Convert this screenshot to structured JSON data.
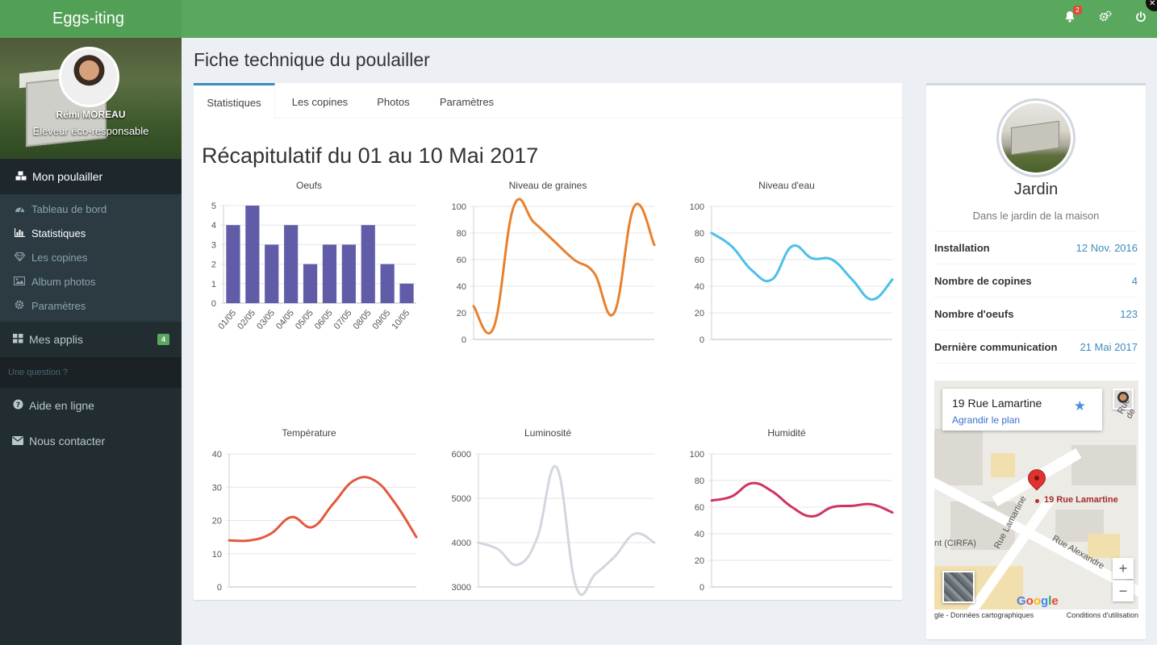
{
  "app": {
    "title": "Eggs-iting"
  },
  "topbar": {
    "notifications_count": "2",
    "icons": [
      "bell-icon",
      "gears-icon",
      "power-icon"
    ]
  },
  "user": {
    "name": "Rémi MOREAU",
    "role": "Eleveur éco-responsable"
  },
  "sidebar": {
    "section_title": "Mon poulailler",
    "items": [
      {
        "label": "Tableau de bord",
        "icon": "dashboard-icon",
        "active": false
      },
      {
        "label": "Statistiques",
        "icon": "bar-chart-icon",
        "active": true
      },
      {
        "label": "Les copines",
        "icon": "diamond-icon",
        "active": false
      },
      {
        "label": "Album photos",
        "icon": "image-icon",
        "active": false
      },
      {
        "label": "Paramètres",
        "icon": "gear-icon",
        "active": false
      }
    ],
    "apps": {
      "label": "Mes applis",
      "badge": "4"
    },
    "question_header": "Une question ?",
    "help": "Aide en ligne",
    "contact": "Nous contacter"
  },
  "page": {
    "title": "Fiche technique du poulailler",
    "tabs": [
      "Statistiques",
      "Les copines",
      "Photos",
      "Paramètres"
    ],
    "active_tab": "Statistiques",
    "recap_title": "Récapitulatif du 01 au 10 Mai 2017"
  },
  "chart_data": [
    {
      "type": "bar",
      "title": "Oeufs",
      "categories": [
        "01/05",
        "02/05",
        "03/05",
        "04/05",
        "05/05",
        "06/05",
        "07/05",
        "08/05",
        "09/05",
        "10/05"
      ],
      "values": [
        4,
        5,
        3,
        4,
        2,
        3,
        3,
        4,
        2,
        1
      ],
      "ylim": [
        0,
        5
      ],
      "yticks": [
        0,
        1,
        2,
        3,
        4,
        5
      ],
      "color": "#605ca8",
      "grid": true
    },
    {
      "type": "line",
      "title": "Niveau de graines",
      "values": [
        25,
        9,
        100,
        88,
        74,
        60,
        50,
        20,
        100,
        71
      ],
      "ylim": [
        0,
        100
      ],
      "yticks": [
        0,
        20,
        40,
        60,
        80,
        100
      ],
      "color": "#e8812f",
      "grid": true
    },
    {
      "type": "line",
      "title": "Niveau d'eau",
      "values": [
        80,
        70,
        52,
        45,
        70,
        61,
        60,
        45,
        30,
        45
      ],
      "ylim": [
        0,
        100
      ],
      "yticks": [
        0,
        20,
        40,
        60,
        80,
        100
      ],
      "color": "#4dc0e8",
      "grid": true
    },
    {
      "type": "line",
      "title": "Température",
      "values": [
        14,
        14,
        16,
        21,
        18,
        25,
        32,
        32,
        25,
        15
      ],
      "ylim": [
        0,
        40
      ],
      "yticks": [
        0,
        10,
        20,
        30,
        40
      ],
      "color": "#e5573f",
      "grid": true
    },
    {
      "type": "line",
      "title": "Luminosité",
      "values": [
        4000,
        3850,
        3500,
        4100,
        5700,
        3000,
        3300,
        3700,
        4200,
        4000
      ],
      "ylim": [
        3000,
        6000
      ],
      "yticks": [
        3000,
        4000,
        5000,
        6000
      ],
      "color": "#d2d6de",
      "grid": true
    },
    {
      "type": "line",
      "title": "Humidité",
      "values": [
        65,
        68,
        78,
        72,
        60,
        53,
        60,
        61,
        62,
        56
      ],
      "ylim": [
        0,
        100
      ],
      "yticks": [
        0,
        20,
        40,
        60,
        80,
        100
      ],
      "color": "#d0345f",
      "grid": true
    }
  ],
  "place": {
    "name": "Jardin",
    "description": "Dans le jardin de la maison",
    "details": [
      {
        "label": "Installation",
        "value": "12 Nov. 2016"
      },
      {
        "label": "Nombre de copines",
        "value": "4"
      },
      {
        "label": "Nombre d'oeufs",
        "value": "123"
      },
      {
        "label": "Dernière communication",
        "value": "21 Mai 2017"
      }
    ]
  },
  "map": {
    "card_title": "19 Rue Lamartine",
    "card_link": "Agrandir le plan",
    "pin_label": "19 Rue Lamartine",
    "street_labels": [
      "nt (CIRFA)",
      "Rue Lamartine",
      "Rue Alexandre",
      "Rue de"
    ],
    "logo": "Google",
    "footer_left": "gle - Données cartographiques",
    "footer_right": "Conditions d'utilisation",
    "zoom_in": "+",
    "zoom_out": "−"
  }
}
